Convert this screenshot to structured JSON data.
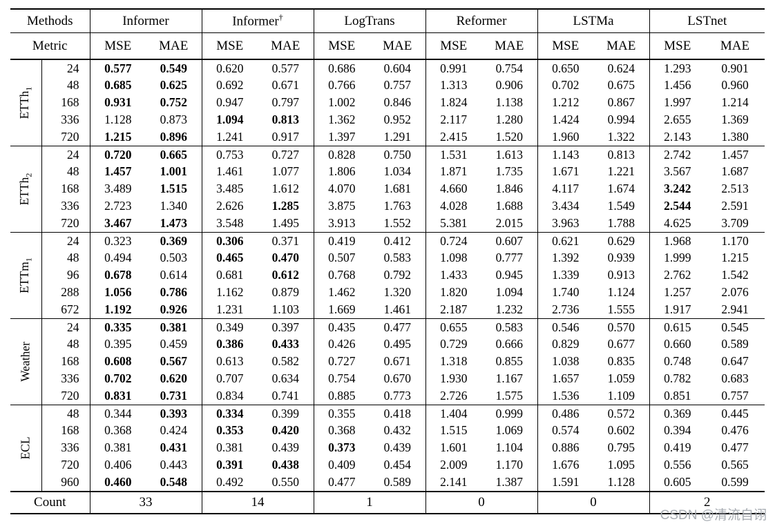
{
  "watermark": "CSDN @清流自诩",
  "table": {
    "methods_label": "Methods",
    "metric_label": "Metric",
    "mse_label": "MSE",
    "mae_label": "MAE",
    "methods": [
      {
        "name": "Informer",
        "sup": ""
      },
      {
        "name": "Informer",
        "sup": "†"
      },
      {
        "name": "LogTrans",
        "sup": ""
      },
      {
        "name": "Reformer",
        "sup": ""
      },
      {
        "name": "LSTMa",
        "sup": ""
      },
      {
        "name": "LSTnet",
        "sup": ""
      }
    ],
    "blocks": [
      {
        "dataset": "ETTh",
        "sub": "1",
        "id": "etth1",
        "rows": [
          {
            "horizon": "24",
            "values": [
              "0.577",
              "0.549",
              "0.620",
              "0.577",
              "0.686",
              "0.604",
              "0.991",
              "0.754",
              "0.650",
              "0.624",
              "1.293",
              "0.901"
            ],
            "bold": [
              0,
              1
            ]
          },
          {
            "horizon": "48",
            "values": [
              "0.685",
              "0.625",
              "0.692",
              "0.671",
              "0.766",
              "0.757",
              "1.313",
              "0.906",
              "0.702",
              "0.675",
              "1.456",
              "0.960"
            ],
            "bold": [
              0,
              1
            ]
          },
          {
            "horizon": "168",
            "values": [
              "0.931",
              "0.752",
              "0.947",
              "0.797",
              "1.002",
              "0.846",
              "1.824",
              "1.138",
              "1.212",
              "0.867",
              "1.997",
              "1.214"
            ],
            "bold": [
              0,
              1
            ]
          },
          {
            "horizon": "336",
            "values": [
              "1.128",
              "0.873",
              "1.094",
              "0.813",
              "1.362",
              "0.952",
              "2.117",
              "1.280",
              "1.424",
              "0.994",
              "2.655",
              "1.369"
            ],
            "bold": [
              2,
              3
            ]
          },
          {
            "horizon": "720",
            "values": [
              "1.215",
              "0.896",
              "1.241",
              "0.917",
              "1.397",
              "1.291",
              "2.415",
              "1.520",
              "1.960",
              "1.322",
              "2.143",
              "1.380"
            ],
            "bold": [
              0,
              1
            ]
          }
        ]
      },
      {
        "dataset": "ETTh",
        "sub": "2",
        "id": "etth2",
        "rows": [
          {
            "horizon": "24",
            "values": [
              "0.720",
              "0.665",
              "0.753",
              "0.727",
              "0.828",
              "0.750",
              "1.531",
              "1.613",
              "1.143",
              "0.813",
              "2.742",
              "1.457"
            ],
            "bold": [
              0,
              1
            ]
          },
          {
            "horizon": "48",
            "values": [
              "1.457",
              "1.001",
              "1.461",
              "1.077",
              "1.806",
              "1.034",
              "1.871",
              "1.735",
              "1.671",
              "1.221",
              "3.567",
              "1.687"
            ],
            "bold": [
              0,
              1
            ]
          },
          {
            "horizon": "168",
            "values": [
              "3.489",
              "1.515",
              "3.485",
              "1.612",
              "4.070",
              "1.681",
              "4.660",
              "1.846",
              "4.117",
              "1.674",
              "3.242",
              "2.513"
            ],
            "bold": [
              1,
              10
            ]
          },
          {
            "horizon": "336",
            "values": [
              "2.723",
              "1.340",
              "2.626",
              "1.285",
              "3.875",
              "1.763",
              "4.028",
              "1.688",
              "3.434",
              "1.549",
              "2.544",
              "2.591"
            ],
            "bold": [
              3,
              10
            ]
          },
          {
            "horizon": "720",
            "values": [
              "3.467",
              "1.473",
              "3.548",
              "1.495",
              "3.913",
              "1.552",
              "5.381",
              "2.015",
              "3.963",
              "1.788",
              "4.625",
              "3.709"
            ],
            "bold": [
              0,
              1
            ]
          }
        ]
      },
      {
        "dataset": "ETTm",
        "sub": "1",
        "id": "ettm1",
        "rows": [
          {
            "horizon": "24",
            "values": [
              "0.323",
              "0.369",
              "0.306",
              "0.371",
              "0.419",
              "0.412",
              "0.724",
              "0.607",
              "0.621",
              "0.629",
              "1.968",
              "1.170"
            ],
            "bold": [
              1,
              2
            ]
          },
          {
            "horizon": "48",
            "values": [
              "0.494",
              "0.503",
              "0.465",
              "0.470",
              "0.507",
              "0.583",
              "1.098",
              "0.777",
              "1.392",
              "0.939",
              "1.999",
              "1.215"
            ],
            "bold": [
              2,
              3
            ]
          },
          {
            "horizon": "96",
            "values": [
              "0.678",
              "0.614",
              "0.681",
              "0.612",
              "0.768",
              "0.792",
              "1.433",
              "0.945",
              "1.339",
              "0.913",
              "2.762",
              "1.542"
            ],
            "bold": [
              0,
              3
            ]
          },
          {
            "horizon": "288",
            "values": [
              "1.056",
              "0.786",
              "1.162",
              "0.879",
              "1.462",
              "1.320",
              "1.820",
              "1.094",
              "1.740",
              "1.124",
              "1.257",
              "2.076"
            ],
            "bold": [
              0,
              1
            ]
          },
          {
            "horizon": "672",
            "values": [
              "1.192",
              "0.926",
              "1.231",
              "1.103",
              "1.669",
              "1.461",
              "2.187",
              "1.232",
              "2.736",
              "1.555",
              "1.917",
              "2.941"
            ],
            "bold": [
              0,
              1
            ]
          }
        ]
      },
      {
        "dataset": "Weather",
        "sub": "",
        "id": "weather",
        "rows": [
          {
            "horizon": "24",
            "values": [
              "0.335",
              "0.381",
              "0.349",
              "0.397",
              "0.435",
              "0.477",
              "0.655",
              "0.583",
              "0.546",
              "0.570",
              "0.615",
              "0.545"
            ],
            "bold": [
              0,
              1
            ]
          },
          {
            "horizon": "48",
            "values": [
              "0.395",
              "0.459",
              "0.386",
              "0.433",
              "0.426",
              "0.495",
              "0.729",
              "0.666",
              "0.829",
              "0.677",
              "0.660",
              "0.589"
            ],
            "bold": [
              2,
              3
            ]
          },
          {
            "horizon": "168",
            "values": [
              "0.608",
              "0.567",
              "0.613",
              "0.582",
              "0.727",
              "0.671",
              "1.318",
              "0.855",
              "1.038",
              "0.835",
              "0.748",
              "0.647"
            ],
            "bold": [
              0,
              1
            ]
          },
          {
            "horizon": "336",
            "values": [
              "0.702",
              "0.620",
              "0.707",
              "0.634",
              "0.754",
              "0.670",
              "1.930",
              "1.167",
              "1.657",
              "1.059",
              "0.782",
              "0.683"
            ],
            "bold": [
              0,
              1
            ]
          },
          {
            "horizon": "720",
            "values": [
              "0.831",
              "0.731",
              "0.834",
              "0.741",
              "0.885",
              "0.773",
              "2.726",
              "1.575",
              "1.536",
              "1.109",
              "0.851",
              "0.757"
            ],
            "bold": [
              0,
              1
            ]
          }
        ]
      },
      {
        "dataset": "ECL",
        "sub": "",
        "id": "ecl",
        "rows": [
          {
            "horizon": "48",
            "values": [
              "0.344",
              "0.393",
              "0.334",
              "0.399",
              "0.355",
              "0.418",
              "1.404",
              "0.999",
              "0.486",
              "0.572",
              "0.369",
              "0.445"
            ],
            "bold": [
              1,
              2
            ]
          },
          {
            "horizon": "168",
            "values": [
              "0.368",
              "0.424",
              "0.353",
              "0.420",
              "0.368",
              "0.432",
              "1.515",
              "1.069",
              "0.574",
              "0.602",
              "0.394",
              "0.476"
            ],
            "bold": [
              2,
              3
            ]
          },
          {
            "horizon": "336",
            "values": [
              "0.381",
              "0.431",
              "0.381",
              "0.439",
              "0.373",
              "0.439",
              "1.601",
              "1.104",
              "0.886",
              "0.795",
              "0.419",
              "0.477"
            ],
            "bold": [
              1,
              4
            ]
          },
          {
            "horizon": "720",
            "values": [
              "0.406",
              "0.443",
              "0.391",
              "0.438",
              "0.409",
              "0.454",
              "2.009",
              "1.170",
              "1.676",
              "1.095",
              "0.556",
              "0.565"
            ],
            "bold": [
              2,
              3
            ]
          },
          {
            "horizon": "960",
            "values": [
              "0.460",
              "0.548",
              "0.492",
              "0.550",
              "0.477",
              "0.589",
              "2.141",
              "1.387",
              "1.591",
              "1.128",
              "0.605",
              "0.599"
            ],
            "bold": [
              0,
              1
            ]
          }
        ]
      }
    ],
    "count": {
      "label": "Count",
      "values": [
        "33",
        "14",
        "1",
        "0",
        "0",
        "2"
      ]
    }
  }
}
